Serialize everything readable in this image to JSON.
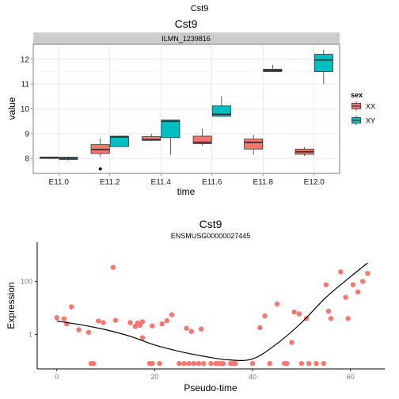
{
  "page_title": "Cst9",
  "chart_data": [
    {
      "type": "box",
      "title": "Cst9",
      "facet_label": "ILMN_1239816",
      "xlabel": "time",
      "ylabel": "value",
      "categories": [
        "E11.0",
        "E11.2",
        "E11.4",
        "E11.6",
        "E11.8",
        "E12.0"
      ],
      "ylim": [
        7.4,
        12.6
      ],
      "yticks": [
        8,
        9,
        10,
        11,
        12
      ],
      "legend": {
        "title": "sex",
        "position": "right"
      },
      "series": [
        {
          "name": "XX",
          "color": "#f8766d",
          "boxes": [
            {
              "min": 7.98,
              "q1": 8.0,
              "median": 8.04,
              "q3": 8.06,
              "max": 8.06
            },
            {
              "min": 8.08,
              "q1": 8.2,
              "median": 8.36,
              "q3": 8.56,
              "max": 8.8
            },
            {
              "min": 8.7,
              "q1": 8.73,
              "median": 8.76,
              "q3": 8.88,
              "max": 9.0
            },
            {
              "min": 8.52,
              "q1": 8.6,
              "median": 8.65,
              "q3": 8.9,
              "max": 9.2
            },
            {
              "min": 8.15,
              "q1": 8.38,
              "median": 8.65,
              "q3": 8.78,
              "max": 8.95
            },
            {
              "min": 8.1,
              "q1": 8.17,
              "median": 8.27,
              "q3": 8.38,
              "max": 8.45
            }
          ],
          "outliers": [
            [
              1,
              7.58
            ]
          ]
        },
        {
          "name": "XY",
          "color": "#00bfc4",
          "boxes": [
            {
              "min": 7.92,
              "q1": 7.96,
              "median": 8.01,
              "q3": 8.05,
              "max": 8.08
            },
            {
              "min": 8.47,
              "q1": 8.48,
              "median": 8.87,
              "q3": 8.9,
              "max": 8.92
            },
            {
              "min": 8.15,
              "q1": 8.84,
              "median": 9.5,
              "q3": 9.55,
              "max": 9.55
            },
            {
              "min": 9.7,
              "q1": 9.7,
              "median": 9.78,
              "q3": 10.12,
              "max": 10.5
            },
            {
              "min": 11.48,
              "q1": 11.5,
              "median": 11.55,
              "q3": 11.6,
              "max": 11.78
            },
            {
              "min": 11.0,
              "q1": 11.5,
              "median": 11.97,
              "q3": 12.2,
              "max": 12.38
            }
          ],
          "outliers": []
        }
      ]
    },
    {
      "type": "scatter",
      "title": "Cst9",
      "subtitle": "ENSMUSG00000027445",
      "xlabel": "Pseudo-time",
      "ylabel": "Expression",
      "x_range": [
        -4,
        67
      ],
      "xticks": [
        0,
        20,
        40,
        60
      ],
      "y_scale": "log10",
      "y_range": [
        0.05,
        3000
      ],
      "ytick_labels": [
        "1",
        "100"
      ],
      "ytick_values": [
        1,
        100
      ],
      "point_color": "#f8766d",
      "points": [
        [
          0,
          4.3
        ],
        [
          1.5,
          3.9
        ],
        [
          2,
          2.5
        ],
        [
          3,
          11
        ],
        [
          4.5,
          1.5
        ],
        [
          6.5,
          1.2
        ],
        [
          7,
          0.08
        ],
        [
          7.5,
          0.08
        ],
        [
          8.5,
          3.2
        ],
        [
          9.5,
          2.8
        ],
        [
          11.5,
          340
        ],
        [
          12,
          3.4
        ],
        [
          15,
          2.8
        ],
        [
          16,
          2.0
        ],
        [
          16.5,
          2.7
        ],
        [
          17.5,
          3.0
        ],
        [
          17,
          2.2
        ],
        [
          17.5,
          0.75
        ],
        [
          19,
          0.08
        ],
        [
          19.5,
          2.1
        ],
        [
          19.5,
          0.08
        ],
        [
          21,
          0.08
        ],
        [
          21.5,
          2.5
        ],
        [
          22.5,
          3.3
        ],
        [
          23.5,
          5.5
        ],
        [
          25,
          0.08
        ],
        [
          26,
          0.08
        ],
        [
          26.5,
          1.7
        ],
        [
          27,
          0.08
        ],
        [
          27.5,
          1.3
        ],
        [
          28,
          0.08
        ],
        [
          29,
          0.08
        ],
        [
          29.5,
          1.6
        ],
        [
          30,
          0.08
        ],
        [
          31.5,
          0.08
        ],
        [
          32.5,
          0.08
        ],
        [
          33,
          0.08
        ],
        [
          33.5,
          0.08
        ],
        [
          34,
          0.08
        ],
        [
          35.5,
          0.08
        ],
        [
          36,
          0.08
        ],
        [
          36.5,
          0.08
        ],
        [
          40,
          0.08
        ],
        [
          41.5,
          1.8
        ],
        [
          42.5,
          5.0
        ],
        [
          43.5,
          0.08
        ],
        [
          45,
          14
        ],
        [
          46.5,
          0.08
        ],
        [
          47,
          0.08
        ],
        [
          48,
          0.5
        ],
        [
          48.5,
          7.0
        ],
        [
          49.5,
          6.0
        ],
        [
          50,
          0.08
        ],
        [
          51,
          4.0
        ],
        [
          51.5,
          0.08
        ],
        [
          53,
          0.08
        ],
        [
          54.5,
          0.08
        ],
        [
          55,
          75
        ],
        [
          55.5,
          7.5
        ],
        [
          56,
          4.0
        ],
        [
          58,
          230
        ],
        [
          59,
          25
        ],
        [
          59.5,
          4.0
        ],
        [
          60.5,
          75
        ],
        [
          61.5,
          40
        ],
        [
          62.5,
          100
        ],
        [
          63.5,
          200
        ]
      ],
      "smooth_line": [
        [
          0,
          3.2
        ],
        [
          5,
          2.3
        ],
        [
          10,
          1.5
        ],
        [
          15,
          0.85
        ],
        [
          20,
          0.4
        ],
        [
          25,
          0.23
        ],
        [
          30,
          0.15
        ],
        [
          35,
          0.11
        ],
        [
          40,
          0.12
        ],
        [
          45,
          0.45
        ],
        [
          50,
          2.8
        ],
        [
          55,
          25
        ],
        [
          60,
          150
        ],
        [
          63.5,
          500
        ]
      ]
    }
  ]
}
